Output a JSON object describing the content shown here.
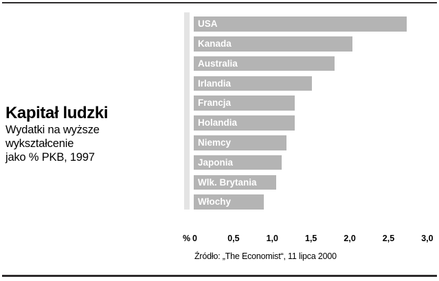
{
  "header": {
    "title": "Kapitał ludzki",
    "subtitle_lines": [
      "Wydatki na wyższe",
      "wykształcenie",
      "jako % PKB, 1997"
    ]
  },
  "chart_data": {
    "type": "bar",
    "orientation": "horizontal",
    "title": "Kapitał ludzki",
    "subtitle": "Wydatki na wyższe wykształcenie jako % PKB, 1997",
    "categories": [
      "USA",
      "Kanada",
      "Australia",
      "Irlandia",
      "Francja",
      "Holandia",
      "Niemcy",
      "Japonia",
      "Wlk. Brytania",
      "Włochy"
    ],
    "values": [
      2.75,
      2.05,
      1.82,
      1.52,
      1.3,
      1.3,
      1.2,
      1.13,
      1.06,
      0.9
    ],
    "xlabel": "%",
    "ylabel": "",
    "xlim": [
      0,
      3.0
    ],
    "x_ticks": [
      {
        "label": "0",
        "value": 0
      },
      {
        "label": "0,5",
        "value": 0.5
      },
      {
        "label": "1,0",
        "value": 1.0
      },
      {
        "label": "1,5",
        "value": 1.5
      },
      {
        "label": "2,0",
        "value": 2.0
      },
      {
        "label": "2,5",
        "value": 2.5
      },
      {
        "label": "3,0",
        "value": 3.0
      }
    ],
    "grid": false,
    "legend": false,
    "bar_labels": "inside-left"
  },
  "axis_unit_label": "%",
  "source_note": "Źródło: „The Economist“, 11 lipca 2000",
  "colors": {
    "bar": "#b4b4b4",
    "axis_band": "#e4e4e4",
    "bar_label": "#ffffff",
    "text": "#000000",
    "rule": "#2d2a2b"
  }
}
